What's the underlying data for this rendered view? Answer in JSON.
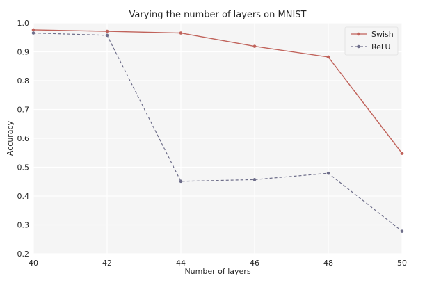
{
  "chart_data": {
    "type": "line",
    "title": "Varying the number of layers on MNIST",
    "xlabel": "Number of layers",
    "ylabel": "Accuracy",
    "x": [
      40,
      42,
      44,
      46,
      48,
      50
    ],
    "xlim": [
      40,
      50
    ],
    "ylim": [
      0.2,
      1.0
    ],
    "xticks": [
      "40",
      "42",
      "44",
      "46",
      "48",
      "50"
    ],
    "yticks": [
      "0.2",
      "0.3",
      "0.4",
      "0.5",
      "0.6",
      "0.7",
      "0.8",
      "0.9",
      "1.0"
    ],
    "grid": true,
    "legend_position": "top-right",
    "series": [
      {
        "name": "Swish",
        "values": [
          0.976,
          0.971,
          0.965,
          0.919,
          0.882,
          0.548
        ],
        "color": "#c0625a",
        "style": "solid"
      },
      {
        "name": "ReLU",
        "values": [
          0.965,
          0.957,
          0.451,
          0.457,
          0.479,
          0.278
        ],
        "color": "#6e6e8a",
        "style": "dashed"
      }
    ]
  }
}
